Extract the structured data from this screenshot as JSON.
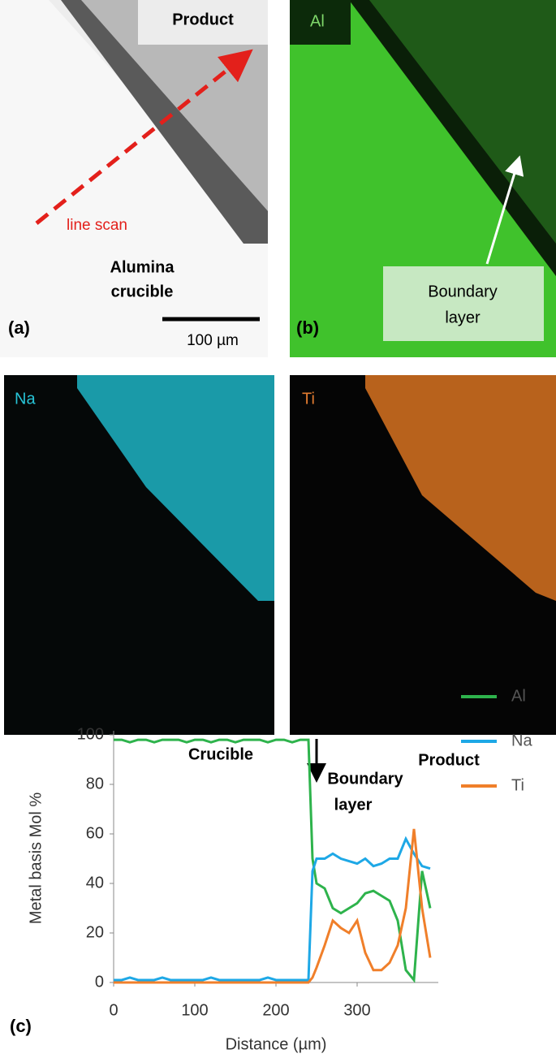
{
  "panels": {
    "a": {
      "product": "Product",
      "line_scan": "line scan",
      "crucible": [
        "Alumina",
        "crucible"
      ],
      "scale_bar": "100 µm",
      "label": "(a)"
    },
    "b": {
      "element": "Al",
      "boundary": [
        "Boundary",
        "layer"
      ],
      "label": "(b)"
    },
    "na": {
      "element": "Na"
    },
    "ti": {
      "element": "Ti"
    }
  },
  "chart_data": {
    "type": "line",
    "label": "(c)",
    "annotations": {
      "crucible": "Crucible",
      "product": "Product",
      "boundary": [
        "Boundary",
        "layer"
      ]
    },
    "x_label": "Distance (µm)",
    "y_label": "Metal basis Mol %",
    "x": [
      0,
      10,
      20,
      30,
      40,
      50,
      60,
      70,
      80,
      90,
      100,
      110,
      120,
      130,
      140,
      150,
      160,
      170,
      180,
      190,
      200,
      210,
      220,
      230,
      240,
      245,
      250,
      260,
      270,
      280,
      290,
      300,
      310,
      320,
      330,
      340,
      350,
      360,
      370,
      380,
      390
    ],
    "series": [
      {
        "name": "Al",
        "color": "#2eb34c",
        "values": [
          98,
          98,
          97,
          98,
          98,
          97,
          98,
          98,
          98,
          97,
          98,
          98,
          97,
          98,
          98,
          97,
          98,
          98,
          98,
          97,
          98,
          98,
          97,
          98,
          98,
          50,
          40,
          38,
          30,
          28,
          30,
          32,
          36,
          37,
          35,
          33,
          25,
          5,
          1,
          45,
          30
        ]
      },
      {
        "name": "Na",
        "color": "#1ea8e6",
        "values": [
          1,
          1,
          2,
          1,
          1,
          1,
          2,
          1,
          1,
          1,
          1,
          1,
          2,
          1,
          1,
          1,
          1,
          1,
          1,
          2,
          1,
          1,
          1,
          1,
          1,
          45,
          50,
          50,
          52,
          50,
          49,
          48,
          50,
          47,
          48,
          50,
          50,
          58,
          52,
          47,
          46
        ]
      },
      {
        "name": "Ti",
        "color": "#f07f2a",
        "values": [
          0,
          0,
          0,
          0,
          0,
          0,
          0,
          0,
          0,
          0,
          0,
          0,
          0,
          0,
          0,
          0,
          0,
          0,
          0,
          0,
          0,
          0,
          0,
          0,
          0,
          2,
          6,
          15,
          25,
          22,
          20,
          25,
          12,
          5,
          5,
          8,
          15,
          30,
          62,
          30,
          10
        ]
      }
    ],
    "xlim": [
      0,
      400
    ],
    "xticks": [
      0,
      100,
      200,
      300
    ],
    "ylim": [
      0,
      100
    ],
    "yticks": [
      0,
      20,
      40,
      60,
      80,
      100
    ],
    "legend": "right"
  }
}
